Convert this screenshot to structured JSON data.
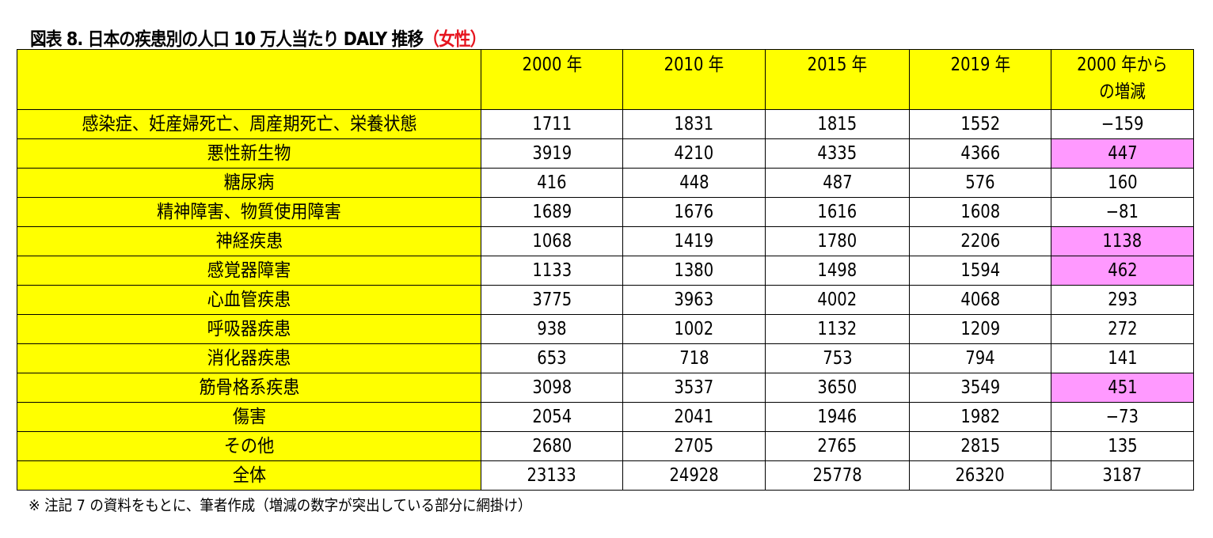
{
  "title": {
    "main": "図表 8.  日本の疾患別の人口 10 万人当たり DALY 推移",
    "accent": "（女性）"
  },
  "table": {
    "headers": [
      "",
      "2000 年",
      "2010 年",
      "2015 年",
      "2019 年",
      "2000 年から\nの増減"
    ],
    "header_line1": "2000 年から",
    "header_line2": "の増減",
    "rows": [
      {
        "label": "感染症、妊産婦死亡、周産期死亡、栄養状態",
        "y2000": "1711",
        "y2010": "1831",
        "y2015": "1815",
        "y2019": "1552",
        "delta": "−159",
        "highlight": false
      },
      {
        "label": "悪性新生物",
        "y2000": "3919",
        "y2010": "4210",
        "y2015": "4335",
        "y2019": "4366",
        "delta": "447",
        "highlight": true
      },
      {
        "label": "糖尿病",
        "y2000": "416",
        "y2010": "448",
        "y2015": "487",
        "y2019": "576",
        "delta": "160",
        "highlight": false
      },
      {
        "label": "精神障害、物質使用障害",
        "y2000": "1689",
        "y2010": "1676",
        "y2015": "1616",
        "y2019": "1608",
        "delta": "−81",
        "highlight": false
      },
      {
        "label": "神経疾患",
        "y2000": "1068",
        "y2010": "1419",
        "y2015": "1780",
        "y2019": "2206",
        "delta": "1138",
        "highlight": true
      },
      {
        "label": "感覚器障害",
        "y2000": "1133",
        "y2010": "1380",
        "y2015": "1498",
        "y2019": "1594",
        "delta": "462",
        "highlight": true
      },
      {
        "label": "心血管疾患",
        "y2000": "3775",
        "y2010": "3963",
        "y2015": "4002",
        "y2019": "4068",
        "delta": "293",
        "highlight": false
      },
      {
        "label": "呼吸器疾患",
        "y2000": "938",
        "y2010": "1002",
        "y2015": "1132",
        "y2019": "1209",
        "delta": "272",
        "highlight": false
      },
      {
        "label": "消化器疾患",
        "y2000": "653",
        "y2010": "718",
        "y2015": "753",
        "y2019": "794",
        "delta": "141",
        "highlight": false
      },
      {
        "label": "筋骨格系疾患",
        "y2000": "3098",
        "y2010": "3537",
        "y2015": "3650",
        "y2019": "3549",
        "delta": "451",
        "highlight": true
      },
      {
        "label": "傷害",
        "y2000": "2054",
        "y2010": "2041",
        "y2015": "1946",
        "y2019": "1982",
        "delta": "−73",
        "highlight": false
      },
      {
        "label": "その他",
        "y2000": "2680",
        "y2010": "2705",
        "y2015": "2765",
        "y2019": "2815",
        "delta": "135",
        "highlight": false
      },
      {
        "label": "全体",
        "y2000": "23133",
        "y2010": "24928",
        "y2015": "25778",
        "y2019": "26320",
        "delta": "3187",
        "highlight": false
      }
    ]
  },
  "colors": {
    "header_bg": "#ffff00",
    "label_bg": "#ffff00",
    "highlight_bg": "#ff99ff",
    "title_accent": "#e6141e"
  },
  "note": "※ 注記 7 の資料をもとに、筆者作成（増減の数字が突出している部分に網掛け）"
}
